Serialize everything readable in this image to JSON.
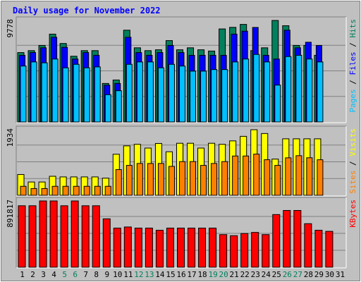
{
  "chart_data": {
    "type": "bar",
    "title": "Daily usage for November 2022",
    "categories": [
      "1",
      "2",
      "3",
      "4",
      "5",
      "6",
      "7",
      "8",
      "9",
      "10",
      "11",
      "12",
      "13",
      "14",
      "15",
      "16",
      "17",
      "18",
      "19",
      "20",
      "21",
      "22",
      "23",
      "24",
      "25",
      "26",
      "27",
      "28",
      "29",
      "30",
      "31"
    ],
    "weekend_days": [
      "5",
      "6",
      "12",
      "13",
      "19",
      "20",
      "26",
      "27"
    ],
    "colors": {
      "title": "#0000ff",
      "background": "#c0c0c0",
      "plot_bg": "#c0c0c0",
      "grid": "#808080",
      "hits": "#00805c",
      "files": "#0000ff",
      "pages": "#00c0ff",
      "visits": "#ffff00",
      "sites": "#ff8000",
      "kbytes": "#ff0000",
      "weekend_label": "#00805c"
    },
    "panels": [
      {
        "id": "hits_files_pages",
        "scale_label": "9778",
        "ymax": 9778,
        "right_label_parts": [
          {
            "text": "Pages",
            "color": "#00c0ff"
          },
          {
            "text": " / ",
            "color": "#000000"
          },
          {
            "text": "Files",
            "color": "#0000ff"
          },
          {
            "text": " / ",
            "color": "#000000"
          },
          {
            "text": "Hits",
            "color": "#00805c"
          }
        ],
        "series": [
          {
            "name": "Hits",
            "values": [
              6683,
              6871,
              7370,
              8460,
              7558,
              6331,
              6871,
              6871,
              3710,
              4043,
              8839,
              7143,
              6871,
              6953,
              7839,
              6953,
              7143,
              6953,
              6831,
              8960,
              9113,
              9398,
              6871,
              7143,
              9778,
              9270,
              7370,
              7370,
              6420,
              0,
              0
            ]
          },
          {
            "name": "Files",
            "values": [
              6420,
              6683,
              7143,
              8158,
              7188,
              6061,
              6683,
              6420,
              3541,
              3710,
              8158,
              6683,
              6420,
              6683,
              7370,
              6683,
              6420,
              6420,
              6420,
              6420,
              8460,
              8745,
              9106,
              6420,
              6061,
              8839,
              7143,
              7680,
              7370,
              0,
              0
            ]
          },
          {
            "name": "Pages",
            "values": [
              5387,
              5782,
              5697,
              6061,
              5215,
              5552,
              5215,
              5302,
              2628,
              3010,
              5552,
              5782,
              5782,
              5218,
              5552,
              5387,
              4896,
              4896,
              5048,
              5048,
              5782,
              6061,
              6502,
              5782,
              3550,
              6301,
              6420,
              6061,
              5782,
              0,
              0
            ]
          }
        ]
      },
      {
        "id": "visits_sites",
        "scale_label": "1934",
        "ymax": 1934,
        "right_label_parts": [
          {
            "text": "Sites",
            "color": "#ff8000"
          },
          {
            "text": " / ",
            "color": "#000000"
          },
          {
            "text": "Visits",
            "color": "#ffff00"
          }
        ],
        "series": [
          {
            "name": "Visits",
            "values": [
              613,
              392,
              392,
              561,
              542,
              542,
              542,
              542,
              506,
              1211,
              1458,
              1504,
              1393,
              1529,
              1284,
              1535,
              1535,
              1393,
              1535,
              1504,
              1605,
              1739,
              1934,
              1822,
              1068,
              1666,
              1666,
              1666,
              1666,
              0,
              0
            ]
          },
          {
            "name": "Sites",
            "values": [
              265,
              199,
              199,
              265,
              265,
              265,
              265,
              265,
              265,
              758,
              882,
              939,
              938,
              939,
              853,
              994,
              994,
              882,
              939,
              994,
              1159,
              1159,
              1215,
              1049,
              882,
              1105,
              1168,
              1107,
              1048,
              0,
              0
            ]
          }
        ]
      },
      {
        "id": "kbytes",
        "scale_label": "891817",
        "ymax": 891817,
        "right_label_parts": [
          {
            "text": "KBytes",
            "color": "#ff0000"
          }
        ],
        "series": [
          {
            "name": "KBytes",
            "values": [
              827000,
              827000,
              891817,
              891817,
              827000,
              891817,
              827000,
              827000,
              651100,
              526500,
              541300,
              526500,
              526500,
              497300,
              526500,
              526500,
              526500,
              526500,
              526500,
              438700,
              424100,
              453400,
              468000,
              438700,
              708500,
              763700,
              763700,
              585700,
              497300,
              482700,
              0
            ]
          }
        ]
      }
    ]
  }
}
